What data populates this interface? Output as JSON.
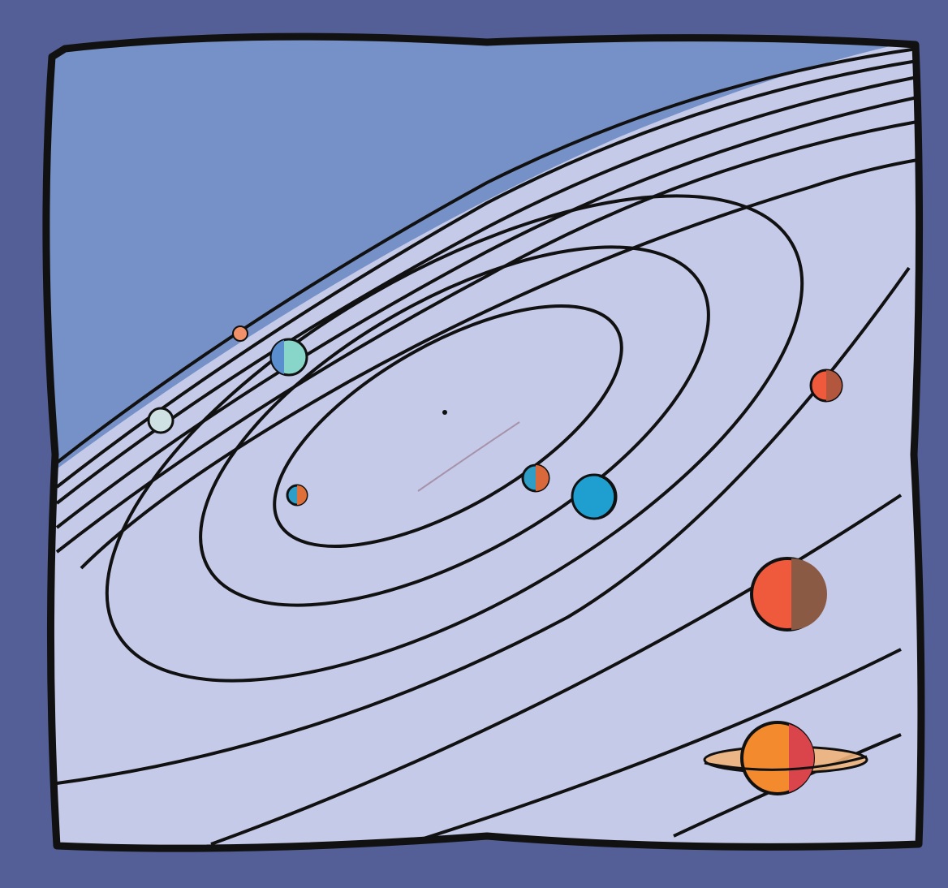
{
  "palette": {
    "background": "#535f96",
    "sky": "#7591c7",
    "plane": "#c4cae8",
    "plane_inner": "#cfd4ec",
    "outline": "#111111",
    "sun_glow": "#8a5a6a"
  },
  "planets": [
    {
      "id": "mercury",
      "color": "#2e9ec6",
      "shade": "#e0703a"
    },
    {
      "id": "venus",
      "color": "#2e9ec6",
      "shade": "#d9683a"
    },
    {
      "id": "earth",
      "color": "#1f9fcf",
      "shade": "#1f9fcf"
    },
    {
      "id": "mars",
      "color": "#ef5a3c",
      "shade": "#b3563e"
    },
    {
      "id": "jupiter",
      "color": "#ef5a3c",
      "shade": "#8b5a45"
    },
    {
      "id": "saturn",
      "color": "#f38a2e",
      "shade": "#d9454a",
      "ring": "#f0b27a"
    },
    {
      "id": "uranus",
      "color": "#88d6c9",
      "shade": "#5a8fcf"
    },
    {
      "id": "neptune",
      "color": "#cfe1e3",
      "shade": "#8aa8c9"
    },
    {
      "id": "pluto",
      "color": "#f0916a",
      "shade": "#c8654a"
    }
  ]
}
